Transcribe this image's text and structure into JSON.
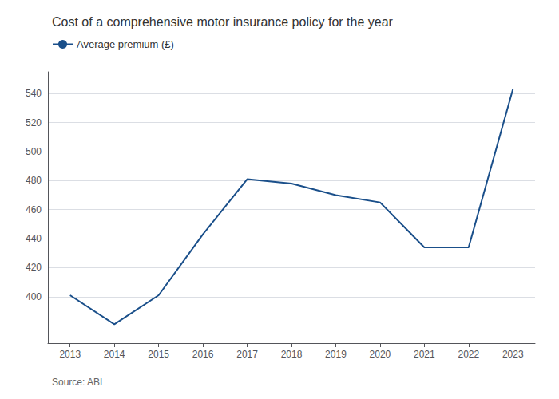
{
  "chart_data": {
    "type": "line",
    "title": "Cost of a comprehensive motor insurance policy for the year",
    "x": [
      2013,
      2014,
      2015,
      2016,
      2017,
      2018,
      2019,
      2020,
      2021,
      2022,
      2023
    ],
    "series": [
      {
        "name": "Average premium (£)",
        "color": "#1a4f8a",
        "values": [
          401,
          381,
          401,
          443,
          481,
          478,
          470,
          465,
          434,
          434,
          543
        ]
      }
    ],
    "xlim": [
      2012.5,
      2023.5
    ],
    "xticks": [
      2013,
      2014,
      2015,
      2016,
      2017,
      2018,
      2019,
      2020,
      2021,
      2022,
      2023
    ],
    "ylim": [
      368,
      555
    ],
    "yticks": [
      400,
      420,
      440,
      460,
      480,
      500,
      520,
      540
    ],
    "grid": true,
    "legend": "upper left",
    "annotations": [
      "Source: ABI"
    ]
  }
}
